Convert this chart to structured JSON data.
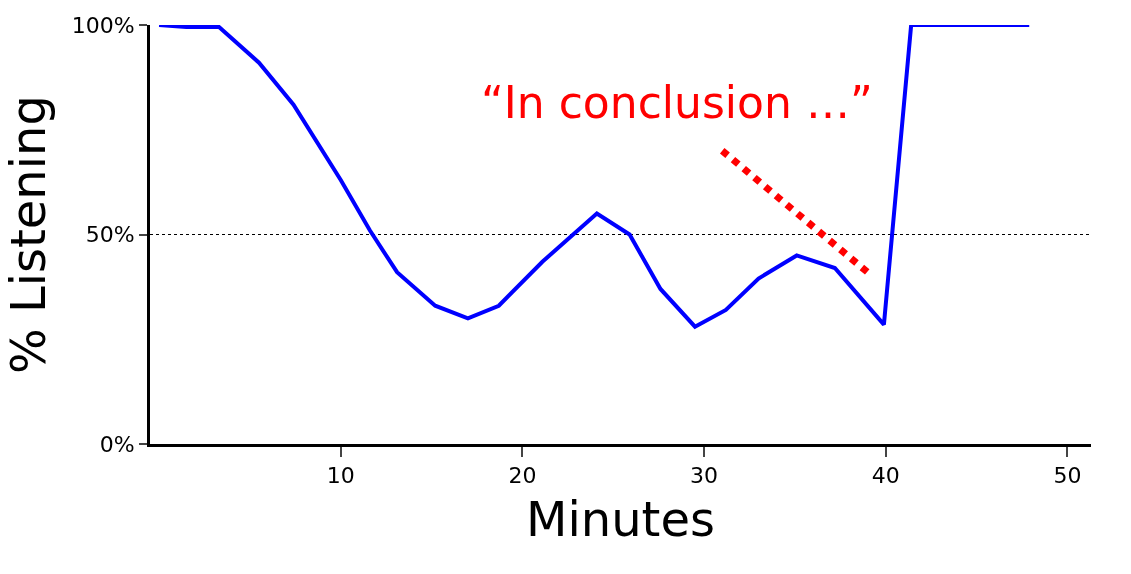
{
  "chart_data": {
    "type": "line",
    "xlabel": "Minutes",
    "ylabel": "% Listening",
    "xlim": [
      -0.5,
      51.3
    ],
    "xticks": [
      10,
      20,
      30,
      40,
      50
    ],
    "ylim": [
      0,
      100
    ],
    "yticks": [
      {
        "value": 0,
        "label": "0%"
      },
      {
        "value": 50,
        "label": "50%"
      },
      {
        "value": 100,
        "label": "100%"
      }
    ],
    "grid": "y",
    "line_style": "solid",
    "marker": "none",
    "series": [
      {
        "color": "#0000ff",
        "x": [
          0,
          1.5,
          3.3,
          5.5,
          7.4,
          10,
          11.6,
          13.1,
          15.2,
          17,
          18.7,
          21.1,
          24.1,
          25.9,
          27.6,
          29.5,
          31.2,
          33,
          35.1,
          37.2,
          39.9,
          41.4,
          47.9
        ],
        "values": [
          100,
          99.5,
          99.5,
          91,
          81,
          63,
          51,
          41,
          33,
          30,
          33,
          43.5,
          55,
          50,
          37,
          28,
          32,
          39.5,
          45,
          42,
          28.5,
          100,
          100
        ]
      },
      {
        "color": "#ff0000",
        "line_style": "dotted",
        "x": [
          31.0,
          39.0
        ],
        "values": [
          70,
          41
        ]
      }
    ],
    "annotations": [
      "“In conclusion …”"
    ]
  }
}
